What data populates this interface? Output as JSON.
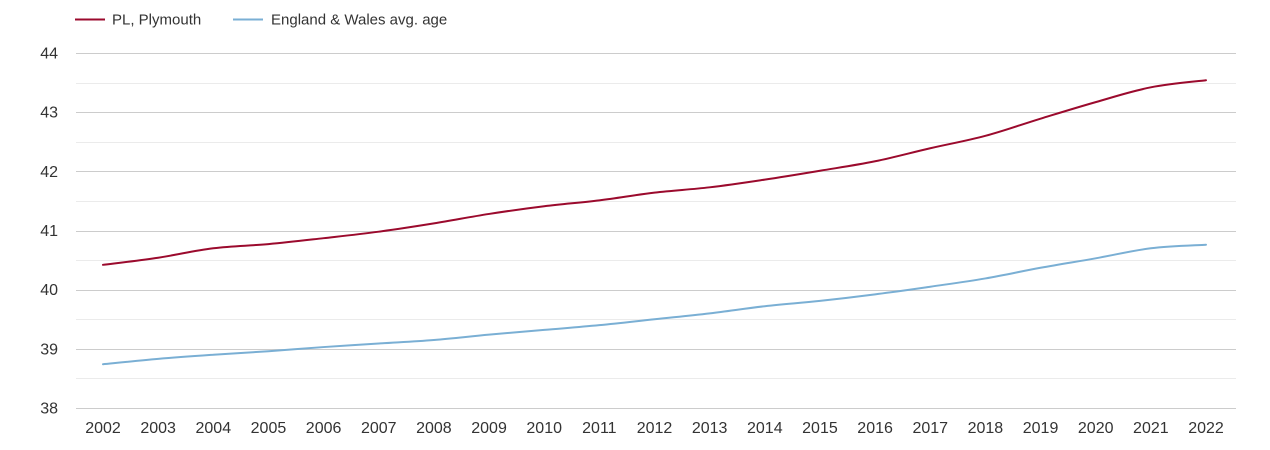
{
  "chart_data": {
    "type": "line",
    "title": "",
    "xlabel": "",
    "ylabel": "",
    "x": [
      "2002",
      "2003",
      "2004",
      "2005",
      "2006",
      "2007",
      "2008",
      "2009",
      "2010",
      "2011",
      "2012",
      "2013",
      "2014",
      "2015",
      "2016",
      "2017",
      "2018",
      "2019",
      "2020",
      "2021",
      "2022"
    ],
    "ylim": [
      38,
      44
    ],
    "yticks": [
      38,
      39,
      40,
      41,
      42,
      43,
      44
    ],
    "grid": true,
    "legend_position": "top-left",
    "series": [
      {
        "name": "PL, Plymouth",
        "color": "#9b0a2d",
        "values": [
          40.42,
          40.54,
          40.7,
          40.77,
          40.87,
          40.98,
          41.12,
          41.28,
          41.41,
          41.51,
          41.64,
          41.73,
          41.86,
          42.01,
          42.17,
          42.39,
          42.6,
          42.89,
          43.17,
          43.42,
          43.54
        ]
      },
      {
        "name": "England & Wales avg. age",
        "color": "#7aafd4",
        "values": [
          38.74,
          38.83,
          38.9,
          38.96,
          39.03,
          39.09,
          39.15,
          39.24,
          39.32,
          39.4,
          39.5,
          39.6,
          39.72,
          39.81,
          39.92,
          40.05,
          40.19,
          40.37,
          40.53,
          40.7,
          40.76
        ]
      }
    ]
  }
}
